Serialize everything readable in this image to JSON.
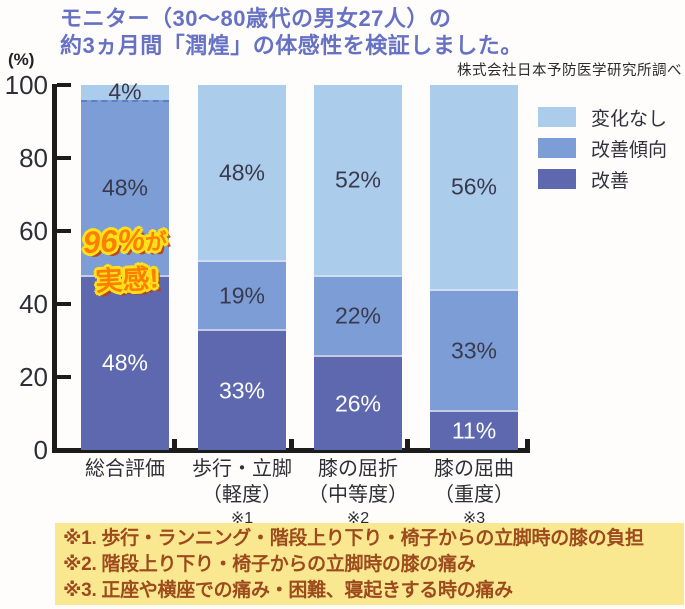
{
  "title": {
    "line1": "モニター（30〜80歳代の男女27人）の",
    "line2": "約3ヵ月間「潤煌」の体感性を検証しました。"
  },
  "source": "株式会社日本予防医学研究所調べ",
  "y_axis": {
    "unit": "(%)",
    "ticks": [
      100,
      80,
      60,
      40,
      20,
      0
    ]
  },
  "legend": {
    "items": [
      {
        "label": "変化なし",
        "color": "#abccea"
      },
      {
        "label": "改善傾向",
        "color": "#7d9dd6"
      },
      {
        "label": "改善",
        "color": "#5e68ae"
      }
    ]
  },
  "burst": {
    "highlight": "96%",
    "suffix": "が",
    "line2": "実感!"
  },
  "categories": [
    {
      "lines": [
        "総合評価"
      ],
      "note": ""
    },
    {
      "lines": [
        "歩行・立脚",
        "（軽度）"
      ],
      "note": "※1"
    },
    {
      "lines": [
        "膝の屈折",
        "（中等度）"
      ],
      "note": "※2"
    },
    {
      "lines": [
        "膝の屈曲",
        "（重度）"
      ],
      "note": "※3"
    }
  ],
  "footnotes": [
    "※1. 歩行・ランニング・階段上り下り・椅子からの立脚時の膝の負担",
    "※2. 階段上り下り・椅子からの立脚時の膝の痛み",
    "※3. 正座や横座での痛み・困難、寝起きする時の痛み"
  ],
  "chart_data": {
    "type": "bar",
    "stacked": true,
    "title": "モニター（30〜80歳代の男女27人）の約3ヵ月間「潤煌」の体感性を検証しました。",
    "categories": [
      "総合評価",
      "歩行・立脚（軽度）※1",
      "膝の屈折（中等度）※2",
      "膝の屈曲（重度）※3"
    ],
    "series": [
      {
        "name": "改善",
        "color": "#5e68ae",
        "label_color": "#ffffff",
        "values": [
          48,
          33,
          26,
          11
        ]
      },
      {
        "name": "改善傾向",
        "color": "#7d9dd6",
        "label_color": "#3a3a4e",
        "values": [
          48,
          19,
          22,
          33
        ]
      },
      {
        "name": "変化なし",
        "color": "#abccea",
        "label_color": "#3a3a4e",
        "values": [
          4,
          48,
          52,
          56
        ]
      }
    ],
    "ylabel": "(%)",
    "ylim": [
      0,
      100
    ],
    "y_ticks": [
      0,
      20,
      40,
      60,
      80,
      100
    ],
    "grid": false,
    "legend_position": "right",
    "annotation": "96%が実感!"
  }
}
